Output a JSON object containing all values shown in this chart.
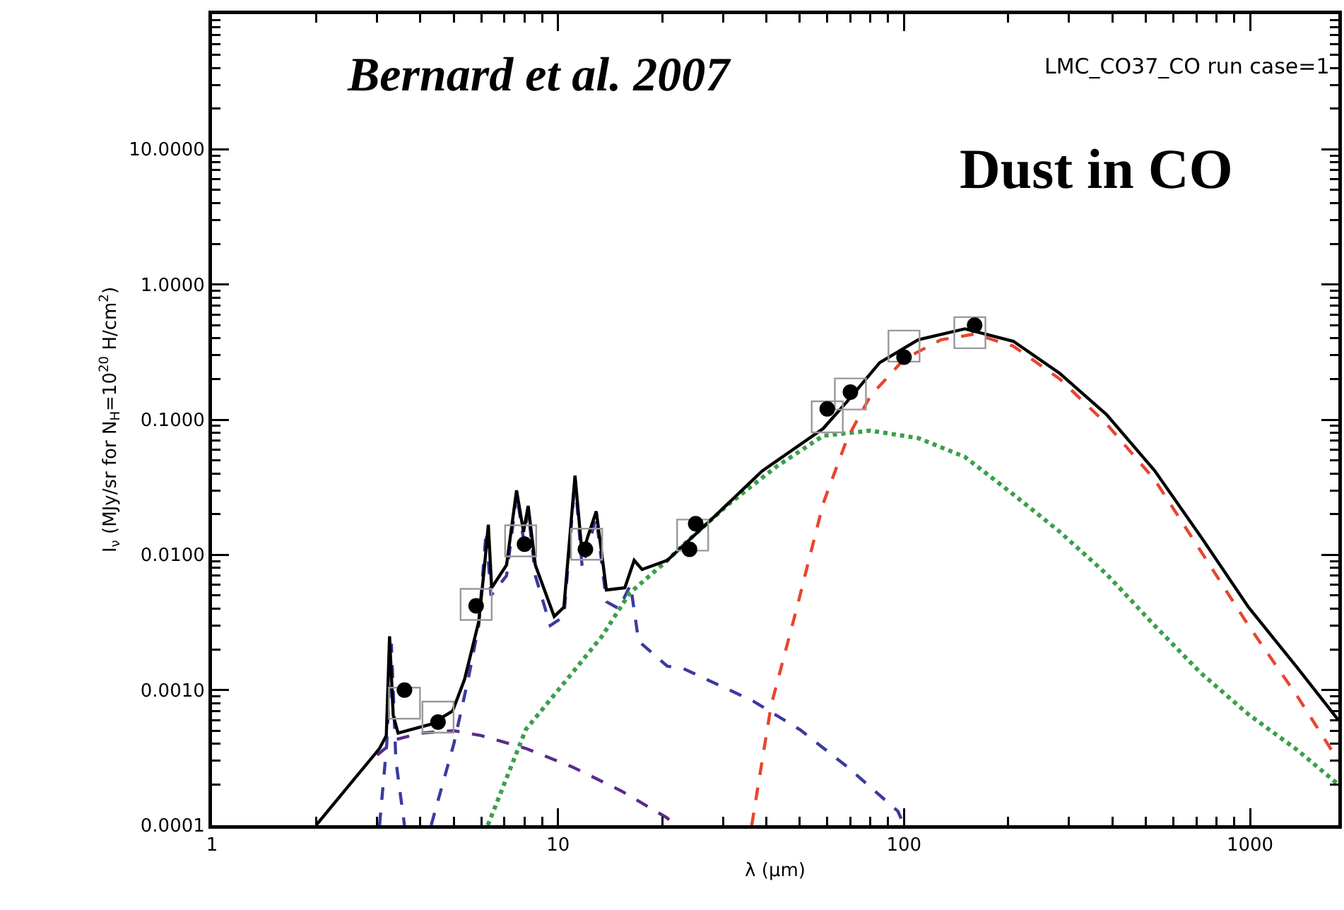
{
  "chart_data": {
    "type": "line",
    "xlabel": "λ (μm)",
    "ylabel": "I$_{ν}$ (MJy/sr for N$_{H}$=10$^{20}$ H/cm$^{2}$)",
    "annotations": [
      "Bernard et al. 2007",
      "LMC_CO37_CO run case=1",
      "Dust in CO"
    ],
    "log": "xy",
    "grid": false,
    "xlim": [
      1,
      1800
    ],
    "ylim": [
      0.0001,
      100
    ],
    "xticks": [
      {
        "value": 1,
        "label": "1"
      },
      {
        "value": 10,
        "label": "10"
      },
      {
        "value": 100,
        "label": "100"
      },
      {
        "value": 1000,
        "label": "1000"
      },
      {
        "value": 2,
        "label": null
      },
      {
        "value": 3,
        "label": null
      },
      {
        "value": 4,
        "label": null
      },
      {
        "value": 5,
        "label": null
      },
      {
        "value": 6,
        "label": null
      },
      {
        "value": 7,
        "label": null
      },
      {
        "value": 8,
        "label": null
      },
      {
        "value": 9,
        "label": null
      },
      {
        "value": 20,
        "label": null
      },
      {
        "value": 30,
        "label": null
      },
      {
        "value": 40,
        "label": null
      },
      {
        "value": 50,
        "label": null
      },
      {
        "value": 60,
        "label": null
      },
      {
        "value": 70,
        "label": null
      },
      {
        "value": 80,
        "label": null
      },
      {
        "value": 90,
        "label": null
      },
      {
        "value": 200,
        "label": null
      },
      {
        "value": 300,
        "label": null
      },
      {
        "value": 400,
        "label": null
      },
      {
        "value": 500,
        "label": null
      },
      {
        "value": 600,
        "label": null
      },
      {
        "value": 700,
        "label": null
      },
      {
        "value": 800,
        "label": null
      },
      {
        "value": 900,
        "label": null
      }
    ],
    "yticks": [
      {
        "value": 0.0001,
        "label": "0.0001"
      },
      {
        "value": 0.001,
        "label": "0.0010"
      },
      {
        "value": 0.01,
        "label": "0.0100"
      },
      {
        "value": 0.1,
        "label": "0.1000"
      },
      {
        "value": 1,
        "label": "1.0000"
      },
      {
        "value": 10,
        "label": "10.0000"
      },
      {
        "value": 0.0002,
        "label": null
      },
      {
        "value": 0.0003,
        "label": null
      },
      {
        "value": 0.0004,
        "label": null
      },
      {
        "value": 0.0005,
        "label": null
      },
      {
        "value": 0.0006,
        "label": null
      },
      {
        "value": 0.0007,
        "label": null
      },
      {
        "value": 0.0008,
        "label": null
      },
      {
        "value": 0.0009,
        "label": null
      },
      {
        "value": 0.002,
        "label": null
      },
      {
        "value": 0.003,
        "label": null
      },
      {
        "value": 0.004,
        "label": null
      },
      {
        "value": 0.005,
        "label": null
      },
      {
        "value": 0.006,
        "label": null
      },
      {
        "value": 0.007,
        "label": null
      },
      {
        "value": 0.008,
        "label": null
      },
      {
        "value": 0.009,
        "label": null
      },
      {
        "value": 0.02,
        "label": null
      },
      {
        "value": 0.03,
        "label": null
      },
      {
        "value": 0.04,
        "label": null
      },
      {
        "value": 0.05,
        "label": null
      },
      {
        "value": 0.06,
        "label": null
      },
      {
        "value": 0.07,
        "label": null
      },
      {
        "value": 0.08,
        "label": null
      },
      {
        "value": 0.09,
        "label": null
      },
      {
        "value": 0.2,
        "label": null
      },
      {
        "value": 0.3,
        "label": null
      },
      {
        "value": 0.4,
        "label": null
      },
      {
        "value": 0.5,
        "label": null
      },
      {
        "value": 0.6,
        "label": null
      },
      {
        "value": 0.7,
        "label": null
      },
      {
        "value": 0.8,
        "label": null
      },
      {
        "value": 0.9,
        "label": null
      },
      {
        "value": 2,
        "label": null
      },
      {
        "value": 3,
        "label": null
      },
      {
        "value": 4,
        "label": null
      },
      {
        "value": 5,
        "label": null
      },
      {
        "value": 6,
        "label": null
      },
      {
        "value": 7,
        "label": null
      },
      {
        "value": 8,
        "label": null
      },
      {
        "value": 9,
        "label": null
      },
      {
        "value": 20,
        "label": null
      },
      {
        "value": 30,
        "label": null
      },
      {
        "value": 40,
        "label": null
      },
      {
        "value": 50,
        "label": null
      },
      {
        "value": 60,
        "label": null
      },
      {
        "value": 70,
        "label": null
      },
      {
        "value": 80,
        "label": null
      },
      {
        "value": 90,
        "label": null
      }
    ],
    "series": [
      {
        "line_style": "dashed",
        "color": "#5b2a8c",
        "x": [
          3.0,
          3.4,
          4.0,
          5.0,
          6.0,
          8.07,
          11,
          15.2,
          20.7,
          21.7
        ],
        "values": [
          0.00033,
          0.00043,
          0.00048,
          0.0005,
          0.00046,
          0.00037,
          0.00027,
          0.00018,
          0.000113,
          0.0001
        ]
      },
      {
        "line_style": "dashed",
        "color": "#3a3aa0",
        "x": [
          3.05,
          3.2,
          3.3,
          3.4,
          3.6,
          3.9,
          4.3,
          5.0,
          5.5,
          5.9,
          6.2,
          6.4,
          7.1,
          7.6,
          7.95,
          8.2,
          8.6,
          9.5,
          10.4,
          11.2,
          11.75,
          12.9,
          13.8,
          15.0,
          16.2,
          17.1,
          20.7,
          22.8,
          36.6,
          50,
          68.6,
          96,
          100
        ],
        "values": [
          0.0001,
          0.0004,
          0.0022,
          0.0003,
          0.0001,
          null,
          0.0001,
          0.0004,
          0.0012,
          0.003,
          0.015,
          0.005,
          0.007,
          0.028,
          0.013,
          0.021,
          0.007,
          0.003,
          0.0035,
          0.036,
          0.008,
          0.019,
          0.0045,
          0.004,
          0.006,
          0.0023,
          0.0015,
          0.00146,
          0.00083,
          0.00051,
          0.00027,
          0.000127,
          0.0001
        ]
      },
      {
        "line_style": "dotted",
        "color": "#3aa04a",
        "x": [
          6.27,
          8.07,
          11.0,
          13.4,
          16.1,
          20.7,
          22.8,
          31.3,
          42.8,
          58.4,
          80,
          110,
          150,
          207,
          282,
          385,
          530,
          720,
          990,
          1370,
          1800
        ],
        "values": [
          0.0001,
          0.00051,
          0.00134,
          0.0025,
          0.0052,
          0.0091,
          0.0116,
          0.024,
          0.045,
          0.076,
          0.083,
          0.073,
          0.053,
          0.028,
          0.0148,
          0.0072,
          0.003,
          0.00134,
          0.00066,
          0.00036,
          0.0002
        ]
      },
      {
        "line_style": "dashed",
        "color": "#e8452e",
        "x": [
          36.3,
          41.3,
          48.7,
          58.4,
          68.6,
          80,
          100,
          128,
          160,
          207,
          282,
          385,
          530,
          720,
          990,
          1370,
          1800
        ],
        "values": [
          0.0001,
          0.00077,
          0.0038,
          0.024,
          0.073,
          0.15,
          0.28,
          0.39,
          0.43,
          0.35,
          0.2,
          0.093,
          0.036,
          0.0107,
          0.003,
          0.0009,
          0.0003
        ]
      },
      {
        "line_style": "solid",
        "color": "#000000",
        "x": [
          2.0,
          3.05,
          3.19,
          3.26,
          3.34,
          3.45,
          4.3,
          4.96,
          5.37,
          5.9,
          6.1,
          6.29,
          6.43,
          7.1,
          7.59,
          7.95,
          8.2,
          8.6,
          9.75,
          10.4,
          11.2,
          11.75,
          12.2,
          12.9,
          13.8,
          15.6,
          16.6,
          17.5,
          20.7,
          28.5,
          38.9,
          58.4,
          68.6,
          85,
          110,
          150,
          207,
          282,
          385,
          530,
          720,
          990,
          1370,
          1800
        ],
        "values": [
          0.0001,
          0.00037,
          0.00046,
          0.0025,
          0.00065,
          0.00048,
          0.00056,
          0.0007,
          0.0012,
          0.0032,
          0.0072,
          0.0167,
          0.0057,
          0.0084,
          0.03,
          0.0148,
          0.023,
          0.0084,
          0.0035,
          0.0041,
          0.0386,
          0.0099,
          0.0137,
          0.021,
          0.0055,
          0.0057,
          0.0091,
          0.0078,
          0.0091,
          0.0195,
          0.0417,
          0.086,
          0.137,
          0.264,
          0.39,
          0.47,
          0.38,
          0.22,
          0.109,
          0.042,
          0.0137,
          0.0041,
          0.00146,
          0.0006
        ]
      },
      {
        "type": "scatter",
        "marker": "square",
        "color": "#999999",
        "x": [
          3.6,
          4.5,
          5.8,
          7.8,
          12.1,
          24.5,
          60,
          70,
          100,
          155
        ],
        "values": [
          0.0008,
          0.00063,
          0.0043,
          0.0127,
          0.012,
          0.014,
          0.105,
          0.155,
          0.35,
          0.44
        ]
      },
      {
        "type": "scatter",
        "marker": "circle",
        "color": "#000000",
        "x": [
          3.6,
          4.5,
          5.8,
          8.0,
          12,
          24,
          25,
          60,
          70,
          100,
          160
        ],
        "values": [
          0.001,
          0.00058,
          0.0042,
          0.012,
          0.011,
          0.011,
          0.017,
          0.12,
          0.16,
          0.29,
          0.5
        ]
      }
    ]
  }
}
